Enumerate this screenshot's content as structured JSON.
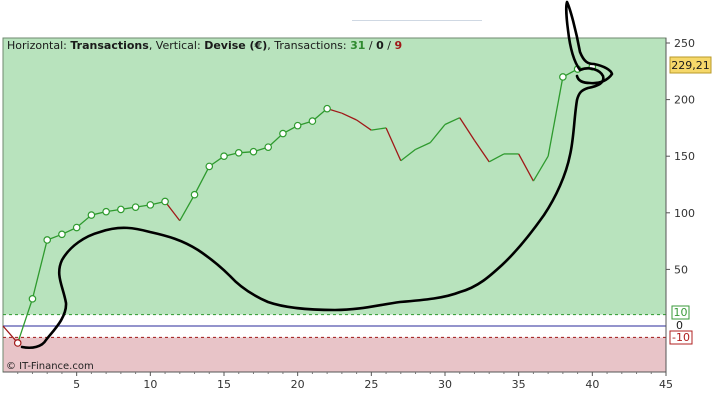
{
  "header": {
    "horizontal_label": "Horizontal: ",
    "horizontal_value": "Transactions",
    "vertical_label": ", Vertical: ",
    "vertical_value": "Devise (€)",
    "transactions_label": ", Transactions: ",
    "wins": "31",
    "sep1": " / ",
    "even": "0",
    "sep2": " / ",
    "losses": "9"
  },
  "current_value_badge": "229,21",
  "threshold_upper_label": "10",
  "threshold_lower_label": "-10",
  "zero_marker": "0",
  "copyright": "© IT-Finance.com",
  "colors": {
    "profit_zone": "#b8e3bd",
    "loss_zone": "#e8c4c8",
    "gain_line": "#2e9a2e",
    "loss_line": "#a01818",
    "zero_line": "#2a2a9a",
    "badge_bg": "#f6d86a",
    "upper_badge": "#3a9a3a",
    "lower_badge": "#b02020",
    "annotation": "#000000"
  },
  "chart_data": {
    "type": "line",
    "title": "",
    "xlabel": "",
    "ylabel": "",
    "xlim": [
      0,
      45
    ],
    "ylim": [
      -33,
      255
    ],
    "x_ticks": [
      5,
      10,
      15,
      20,
      25,
      30,
      35,
      40,
      45
    ],
    "y_ticks": [
      50,
      100,
      150,
      200,
      250
    ],
    "grid": false,
    "series": [
      {
        "points": [
          [
            0,
            0
          ],
          [
            1,
            -15
          ],
          [
            2,
            24
          ],
          [
            3,
            76
          ],
          [
            4,
            81
          ],
          [
            5,
            87
          ],
          [
            6,
            98
          ],
          [
            7,
            101
          ],
          [
            8,
            103
          ],
          [
            9,
            105
          ],
          [
            10,
            107
          ],
          [
            11,
            110
          ],
          [
            12,
            93
          ],
          [
            13,
            116
          ],
          [
            14,
            141
          ],
          [
            15,
            150
          ],
          [
            16,
            153
          ],
          [
            17,
            154
          ],
          [
            18,
            158
          ],
          [
            19,
            170
          ],
          [
            20,
            177
          ],
          [
            21,
            181
          ],
          [
            22,
            192
          ],
          [
            23,
            188
          ],
          [
            24,
            182
          ],
          [
            25,
            173
          ],
          [
            26,
            175
          ],
          [
            27,
            146
          ],
          [
            28,
            156
          ],
          [
            29,
            162
          ],
          [
            30,
            178
          ],
          [
            31,
            184
          ],
          [
            32,
            164
          ],
          [
            33,
            145
          ],
          [
            34,
            152
          ],
          [
            35,
            152
          ],
          [
            36,
            128
          ],
          [
            37,
            150
          ],
          [
            38,
            220
          ],
          [
            39,
            227
          ],
          [
            40,
            229
          ]
        ],
        "markers_at": [
          1,
          2,
          3,
          4,
          5,
          6,
          7,
          8,
          9,
          10,
          11,
          13,
          14,
          15,
          16,
          17,
          18,
          19,
          20,
          21,
          22,
          38,
          39,
          40
        ]
      }
    ],
    "zones": {
      "upper": 10,
      "lower": -10
    },
    "current_value": 229.21
  }
}
